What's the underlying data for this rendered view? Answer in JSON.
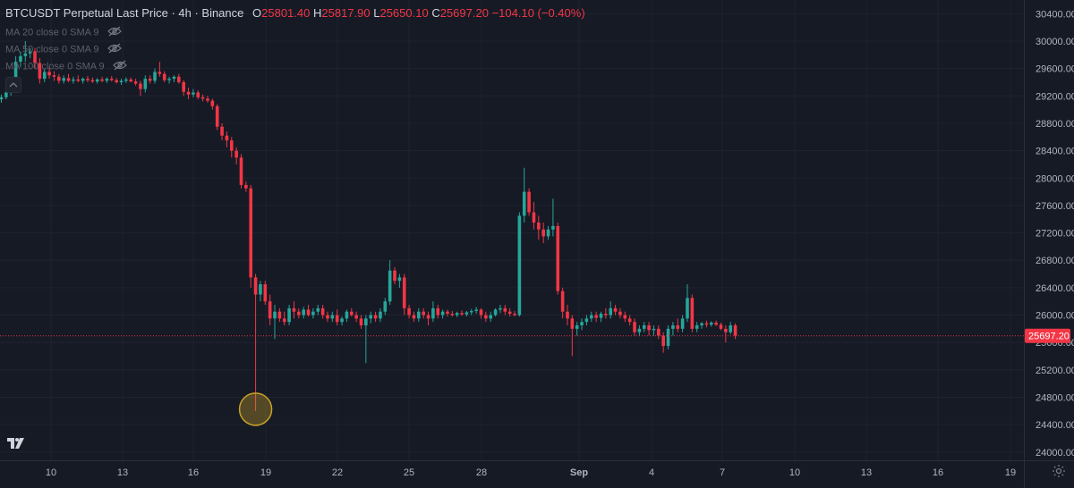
{
  "header": {
    "symbol": "BTCUSDT Perpetual Last Price · 4h · Binance",
    "o_label": "O",
    "o_value": "25801.40",
    "h_label": "H",
    "h_value": "25817.90",
    "l_label": "L",
    "l_value": "25650.10",
    "c_label": "C",
    "c_value": "25697.20",
    "change": "−104.10 (−0.40%)"
  },
  "indicators": [
    {
      "label": "MA 20 close 0 SMA 9"
    },
    {
      "label": "MA 50 close 0 SMA 9"
    },
    {
      "label": "MA 100 close 0 SMA 9"
    }
  ],
  "price_scale": {
    "ticks": [
      "30400.00",
      "30000.00",
      "29600.00",
      "29200.00",
      "28800.00",
      "28400.00",
      "28000.00",
      "27600.00",
      "27200.00",
      "26800.00",
      "26400.00",
      "26000.00",
      "25600.00",
      "25200.00",
      "24800.00",
      "24400.00",
      "24000.00"
    ],
    "last_price_label": "25697.20"
  },
  "time_scale": {
    "ticks": [
      "10",
      "13",
      "16",
      "19",
      "22",
      "25",
      "28",
      "Sep",
      "4",
      "7",
      "10",
      "13",
      "16",
      "19"
    ]
  },
  "colors": {
    "background": "#161a25",
    "up": "#26a69a",
    "down": "#f23645",
    "grid": "#1f2330",
    "axis_text": "#b2b5be",
    "highlight": "#c9a227"
  },
  "icons": {
    "logo": "tradingview-logo-icon",
    "settings": "gear-icon",
    "visibility": "eye-crossed-icon",
    "collapse": "chevron-up-icon"
  },
  "chart_data": {
    "type": "candlestick",
    "interval": "4h",
    "ylim": [
      23880,
      30600
    ],
    "last_price": 25697.2,
    "highlight_low": 24600,
    "x_ticks": [
      "10",
      "13",
      "16",
      "19",
      "22",
      "25",
      "28",
      "Sep",
      "4",
      "7",
      "10",
      "13",
      "16",
      "19"
    ],
    "y_ticks": [
      30400,
      30000,
      29600,
      29200,
      28800,
      28400,
      28000,
      27600,
      27200,
      26800,
      26400,
      26000,
      25600,
      25200,
      24800,
      24400,
      24000
    ],
    "candles": [
      [
        29150,
        29220,
        29100,
        29180
      ],
      [
        29180,
        29300,
        29150,
        29250
      ],
      [
        29250,
        29460,
        29200,
        29420
      ],
      [
        29420,
        29780,
        29400,
        29700
      ],
      [
        29700,
        29850,
        29620,
        29780
      ],
      [
        29780,
        30000,
        29700,
        29820
      ],
      [
        29820,
        29900,
        29750,
        29850
      ],
      [
        29850,
        29900,
        29600,
        29680
      ],
      [
        29680,
        29750,
        29380,
        29450
      ],
      [
        29450,
        29600,
        29400,
        29550
      ],
      [
        29550,
        29620,
        29450,
        29500
      ],
      [
        29500,
        29560,
        29420,
        29480
      ],
      [
        29480,
        29520,
        29380,
        29420
      ],
      [
        29420,
        29500,
        29380,
        29460
      ],
      [
        29460,
        29520,
        29400,
        29420
      ],
      [
        29420,
        29480,
        29380,
        29440
      ],
      [
        29440,
        29500,
        29400,
        29420
      ],
      [
        29420,
        29470,
        29380,
        29450
      ],
      [
        29450,
        29490,
        29400,
        29430
      ],
      [
        29430,
        29470,
        29390,
        29410
      ],
      [
        29410,
        29460,
        29380,
        29440
      ],
      [
        29440,
        29480,
        29400,
        29420
      ],
      [
        29420,
        29470,
        29390,
        29450
      ],
      [
        29450,
        29490,
        29410,
        29430
      ],
      [
        29430,
        29460,
        29380,
        29400
      ],
      [
        29400,
        29450,
        29360,
        29420
      ],
      [
        29420,
        29470,
        29390,
        29440
      ],
      [
        29440,
        29470,
        29400,
        29410
      ],
      [
        29410,
        29450,
        29350,
        29380
      ],
      [
        29380,
        29420,
        29200,
        29300
      ],
      [
        29300,
        29500,
        29250,
        29450
      ],
      [
        29450,
        29500,
        29380,
        29420
      ],
      [
        29420,
        29600,
        29380,
        29550
      ],
      [
        29550,
        29700,
        29480,
        29520
      ],
      [
        29520,
        29560,
        29400,
        29430
      ],
      [
        29430,
        29480,
        29380,
        29450
      ],
      [
        29450,
        29500,
        29400,
        29480
      ],
      [
        29480,
        29520,
        29380,
        29400
      ],
      [
        29400,
        29430,
        29200,
        29260
      ],
      [
        29260,
        29320,
        29150,
        29220
      ],
      [
        29220,
        29300,
        29180,
        29250
      ],
      [
        29250,
        29280,
        29150,
        29180
      ],
      [
        29180,
        29220,
        29120,
        29160
      ],
      [
        29160,
        29200,
        29100,
        29130
      ],
      [
        29130,
        29160,
        29000,
        29050
      ],
      [
        29050,
        29080,
        28700,
        28750
      ],
      [
        28750,
        28800,
        28550,
        28620
      ],
      [
        28620,
        28680,
        28450,
        28550
      ],
      [
        28550,
        28600,
        28300,
        28400
      ],
      [
        28400,
        28450,
        28200,
        28300
      ],
      [
        28300,
        28350,
        27850,
        27900
      ],
      [
        27900,
        27950,
        27800,
        27850
      ],
      [
        27850,
        27900,
        26400,
        26550
      ],
      [
        26550,
        26600,
        24600,
        26300
      ],
      [
        26300,
        26500,
        26200,
        26450
      ],
      [
        26450,
        26500,
        26150,
        26200
      ],
      [
        26200,
        26300,
        25850,
        25950
      ],
      [
        25950,
        26150,
        25650,
        26050
      ],
      [
        26050,
        26100,
        25900,
        25950
      ],
      [
        25950,
        26050,
        25850,
        25900
      ],
      [
        25900,
        26150,
        25850,
        26100
      ],
      [
        26100,
        26200,
        25950,
        26050
      ],
      [
        26050,
        26100,
        25950,
        26000
      ],
      [
        26000,
        26120,
        25950,
        26080
      ],
      [
        26080,
        26150,
        25980,
        26000
      ],
      [
        26000,
        26100,
        25950,
        26050
      ],
      [
        26050,
        26150,
        26000,
        26100
      ],
      [
        26100,
        26150,
        25950,
        26000
      ],
      [
        26000,
        26050,
        25900,
        25950
      ],
      [
        25950,
        26050,
        25900,
        26000
      ],
      [
        26000,
        26080,
        25850,
        25900
      ],
      [
        25900,
        25980,
        25850,
        25950
      ],
      [
        25950,
        26080,
        25900,
        26050
      ],
      [
        26050,
        26100,
        25980,
        26000
      ],
      [
        26000,
        26050,
        25900,
        25950
      ],
      [
        25950,
        26000,
        25800,
        25850
      ],
      [
        25850,
        26000,
        25300,
        25950
      ],
      [
        25950,
        26050,
        25880,
        26000
      ],
      [
        26000,
        26050,
        25900,
        25950
      ],
      [
        25950,
        26100,
        25900,
        26050
      ],
      [
        26050,
        26250,
        26000,
        26200
      ],
      [
        26200,
        26800,
        26150,
        26650
      ],
      [
        26650,
        26700,
        26450,
        26500
      ],
      [
        26500,
        26600,
        26400,
        26550
      ],
      [
        26550,
        26600,
        26000,
        26100
      ],
      [
        26100,
        26150,
        25950,
        26000
      ],
      [
        26000,
        26050,
        25900,
        25950
      ],
      [
        25950,
        26100,
        25900,
        26050
      ],
      [
        26050,
        26100,
        25950,
        26000
      ],
      [
        26000,
        26050,
        25850,
        25950
      ],
      [
        25950,
        26200,
        25900,
        26100
      ],
      [
        26100,
        26150,
        25950,
        26000
      ],
      [
        26000,
        26080,
        25950,
        26050
      ],
      [
        26050,
        26080,
        25980,
        26020
      ],
      [
        26020,
        26060,
        25980,
        26000
      ],
      [
        26000,
        26050,
        25970,
        26030
      ],
      [
        26030,
        26070,
        25990,
        26010
      ],
      [
        26010,
        26060,
        25980,
        26040
      ],
      [
        26040,
        26090,
        26000,
        26060
      ],
      [
        26060,
        26120,
        26020,
        26080
      ],
      [
        26080,
        26100,
        25950,
        26000
      ],
      [
        26000,
        26050,
        25900,
        25950
      ],
      [
        25950,
        26050,
        25900,
        26000
      ],
      [
        26000,
        26100,
        25980,
        26080
      ],
      [
        26080,
        26150,
        26030,
        26100
      ],
      [
        26100,
        26150,
        26000,
        26050
      ],
      [
        26050,
        26100,
        25980,
        26020
      ],
      [
        26020,
        26060,
        25980,
        26000
      ],
      [
        26000,
        27500,
        25980,
        27450
      ],
      [
        27450,
        28150,
        27350,
        27800
      ],
      [
        27800,
        27850,
        27450,
        27500
      ],
      [
        27500,
        27650,
        27250,
        27350
      ],
      [
        27350,
        27450,
        27100,
        27250
      ],
      [
        27250,
        27350,
        27050,
        27150
      ],
      [
        27150,
        27300,
        27100,
        27250
      ],
      [
        27250,
        27700,
        27150,
        27300
      ],
      [
        27300,
        27350,
        26300,
        26350
      ],
      [
        26350,
        26400,
        25950,
        26050
      ],
      [
        26050,
        26150,
        25850,
        25950
      ],
      [
        25950,
        26000,
        25400,
        25800
      ],
      [
        25800,
        25900,
        25700,
        25850
      ],
      [
        25850,
        25950,
        25780,
        25900
      ],
      [
        25900,
        26000,
        25850,
        25950
      ],
      [
        25950,
        26050,
        25900,
        26000
      ],
      [
        26000,
        26050,
        25900,
        25960
      ],
      [
        25960,
        26050,
        25900,
        26020
      ],
      [
        26020,
        26100,
        25950,
        26000
      ],
      [
        26000,
        26200,
        25950,
        26100
      ],
      [
        26100,
        26150,
        26000,
        26050
      ],
      [
        26050,
        26100,
        25950,
        26000
      ],
      [
        26000,
        26050,
        25900,
        25950
      ],
      [
        25950,
        26000,
        25850,
        25900
      ],
      [
        25900,
        25950,
        25700,
        25750
      ],
      [
        25750,
        25850,
        25700,
        25800
      ],
      [
        25800,
        25900,
        25750,
        25850
      ],
      [
        25850,
        25900,
        25700,
        25780
      ],
      [
        25780,
        25850,
        25700,
        25800
      ],
      [
        25800,
        25850,
        25650,
        25700
      ],
      [
        25700,
        25750,
        25450,
        25550
      ],
      [
        25550,
        25850,
        25500,
        25800
      ],
      [
        25800,
        25900,
        25700,
        25850
      ],
      [
        25850,
        25950,
        25750,
        25800
      ],
      [
        25800,
        26000,
        25750,
        25950
      ],
      [
        25950,
        26450,
        25900,
        26250
      ],
      [
        26250,
        26300,
        25750,
        25800
      ],
      [
        25800,
        25900,
        25750,
        25850
      ],
      [
        25850,
        25900,
        25800,
        25880
      ],
      [
        25880,
        25920,
        25820,
        25860
      ],
      [
        25860,
        25910,
        25830,
        25890
      ],
      [
        25890,
        25920,
        25840,
        25860
      ],
      [
        25860,
        25890,
        25780,
        25800
      ],
      [
        25800,
        25850,
        25600,
        25750
      ],
      [
        25750,
        25900,
        25720,
        25850
      ],
      [
        25850,
        25880,
        25650,
        25700
      ]
    ]
  }
}
